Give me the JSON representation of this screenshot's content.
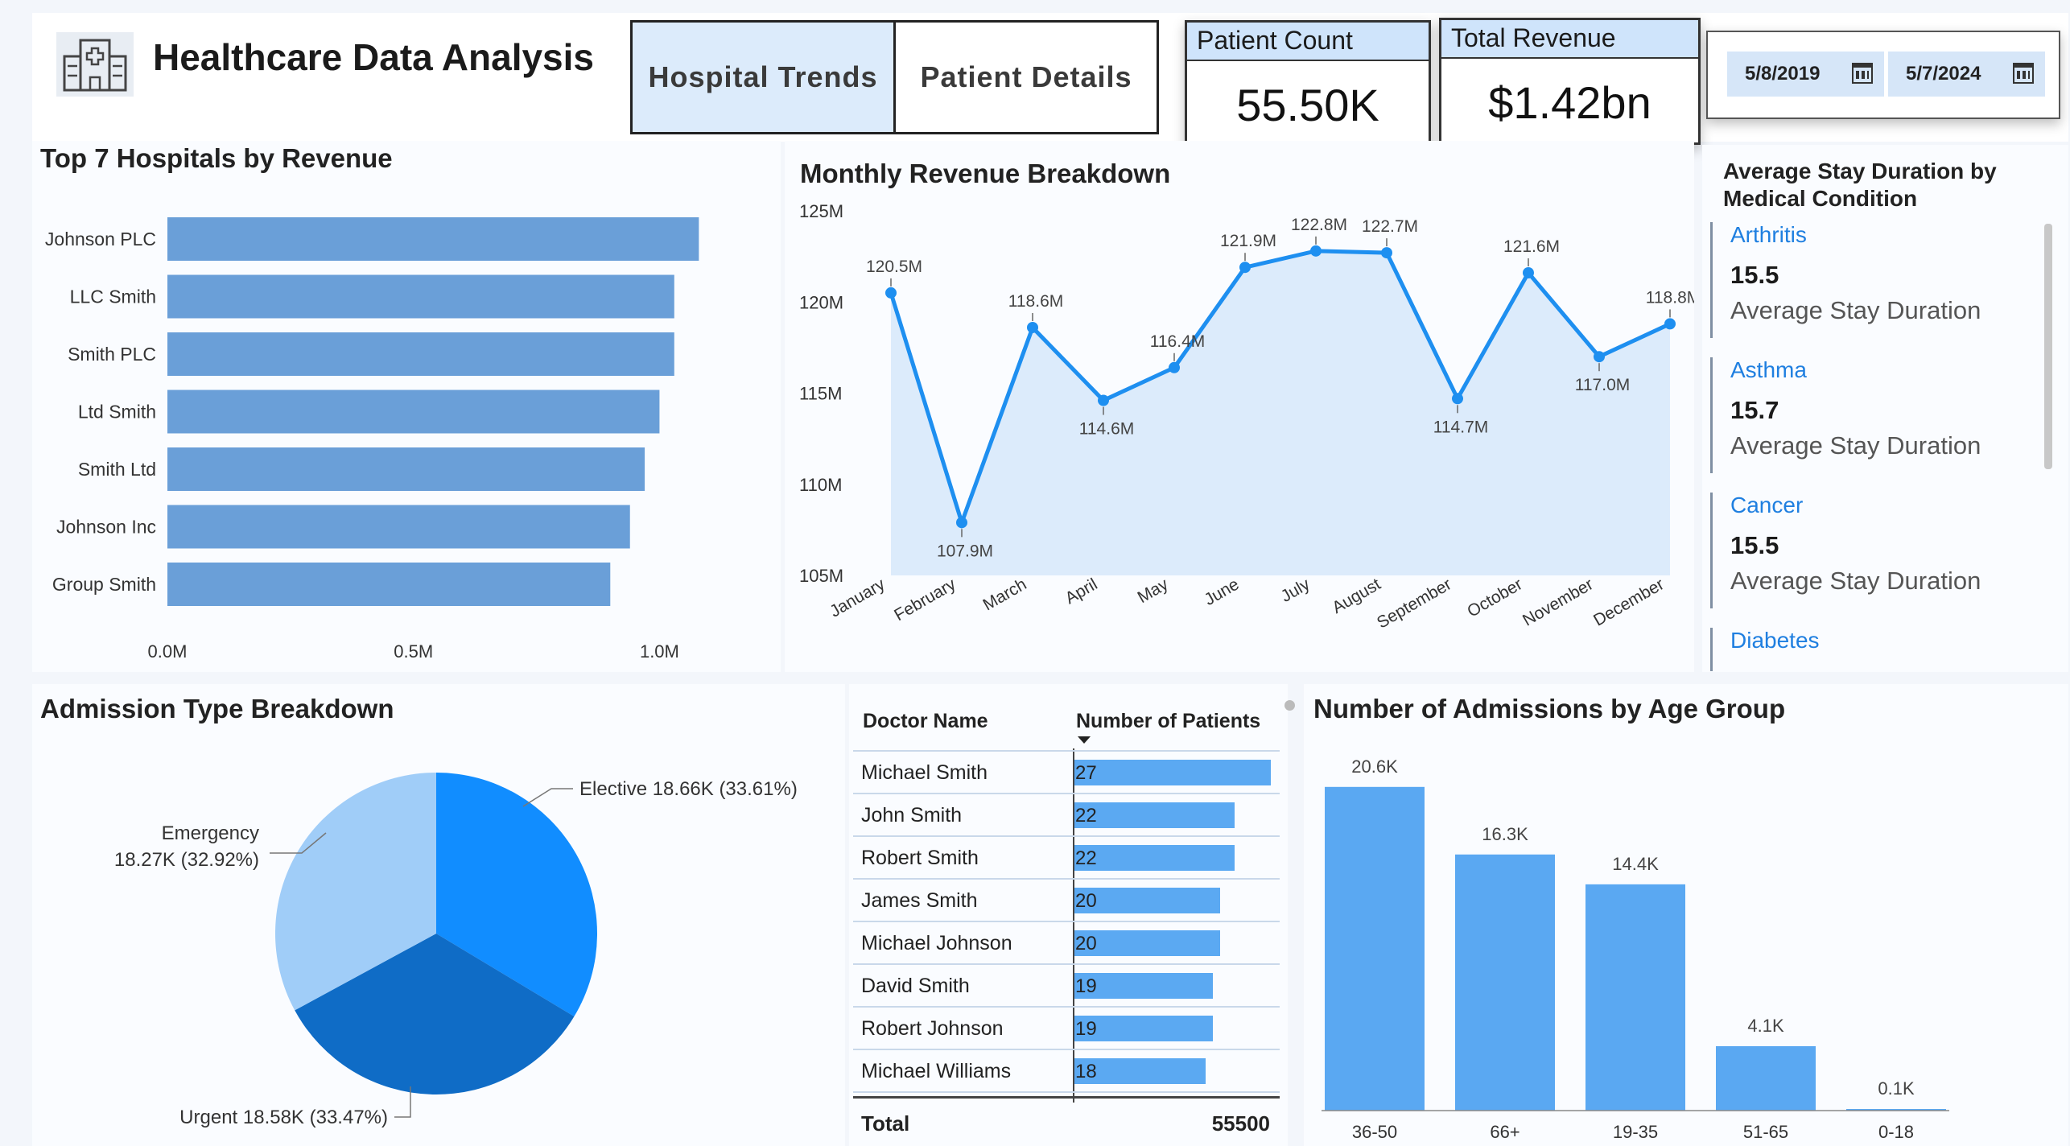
{
  "header": {
    "title": "Healthcare Data Analysis",
    "tabs": [
      {
        "label": "Hospital Trends",
        "active": true
      },
      {
        "label": "Patient Details",
        "active": false
      }
    ],
    "kpis": {
      "patient_count": {
        "label": "Patient Count",
        "value": "55.50K"
      },
      "total_revenue": {
        "label": "Total Revenue",
        "value": "$1.42bn"
      }
    },
    "date_range": {
      "start": "5/8/2019",
      "end": "5/7/2024"
    }
  },
  "hospitals": {
    "title": "Top 7 Hospitals by Revenue",
    "categories": [
      "Johnson PLC",
      "LLC Smith",
      "Smith PLC",
      "Ltd Smith",
      "Smith Ltd",
      "Johnson Inc",
      "Group Smith"
    ],
    "values": [
      1.08,
      1.03,
      1.03,
      1.0,
      0.97,
      0.94,
      0.9
    ],
    "xticks": [
      "0.0M",
      "0.5M",
      "1.0M"
    ],
    "xlim": [
      0,
      1.05
    ],
    "color": "#6a9fd8"
  },
  "monthly": {
    "title": "Monthly Revenue Breakdown",
    "months": [
      "January",
      "February",
      "March",
      "April",
      "May",
      "June",
      "July",
      "August",
      "September",
      "October",
      "November",
      "December"
    ],
    "values": [
      120.5,
      107.9,
      118.6,
      114.6,
      116.4,
      121.9,
      122.8,
      122.7,
      114.7,
      121.6,
      117.0,
      118.8
    ],
    "labels": [
      "120.5M",
      "107.9M",
      "118.6M",
      "114.6M",
      "116.4M",
      "121.9M",
      "122.8M",
      "122.7M",
      "114.7M",
      "121.6M",
      "117.0M",
      "118.8M"
    ],
    "yticks": [
      "125M",
      "120M",
      "115M",
      "110M",
      "105M"
    ],
    "ylim": [
      105,
      125
    ],
    "line_color": "#1e8ff0",
    "area_color": "#dcebfb"
  },
  "conditions": {
    "title": "Average Stay Duration by Medical Condition",
    "items": [
      {
        "name": "Arthritis",
        "value": "15.5",
        "label": "Average Stay Duration"
      },
      {
        "name": "Asthma",
        "value": "15.7",
        "label": "Average Stay Duration"
      },
      {
        "name": "Cancer",
        "value": "15.5",
        "label": "Average Stay Duration"
      },
      {
        "name": "Diabetes",
        "value": "",
        "label": ""
      }
    ]
  },
  "admission": {
    "title": "Admission Type Breakdown",
    "slices": [
      {
        "name": "Elective",
        "value": 18.66,
        "label": "Elective 18.66K (33.61%)",
        "color": "#118dff"
      },
      {
        "name": "Urgent",
        "value": 18.58,
        "label": "Urgent 18.58K (33.47%)",
        "color": "#0f6cc6"
      },
      {
        "name": "Emergency",
        "value": 18.27,
        "label_line1": "Emergency",
        "label_line2": "18.27K (32.92%)",
        "color": "#a0cdf8"
      }
    ]
  },
  "doctors": {
    "col_name": "Doctor Name",
    "col_patients": "Number of Patients",
    "rows": [
      {
        "name": "Michael Smith",
        "patients": 27
      },
      {
        "name": "John Smith",
        "patients": 22
      },
      {
        "name": "Robert Smith",
        "patients": 22
      },
      {
        "name": "James Smith",
        "patients": 20
      },
      {
        "name": "Michael Johnson",
        "patients": 20
      },
      {
        "name": "David Smith",
        "patients": 19
      },
      {
        "name": "Robert Johnson",
        "patients": 19
      },
      {
        "name": "Michael Williams",
        "patients": 18
      }
    ],
    "total_label": "Total",
    "total_value": "55500",
    "bar_color": "#5ba9f2"
  },
  "age": {
    "title": "Number of Admissions by Age Group",
    "categories": [
      "36-50",
      "66+",
      "19-35",
      "51-65",
      "0-18"
    ],
    "values": [
      20.6,
      16.3,
      14.4,
      4.1,
      0.1
    ],
    "labels": [
      "20.6K",
      "16.3K",
      "14.4K",
      "4.1K",
      "0.1K"
    ],
    "ylim": [
      0,
      21
    ],
    "color": "#5aa8f2"
  },
  "chart_data": [
    {
      "type": "bar",
      "title": "Top 7 Hospitals by Revenue",
      "orientation": "horizontal",
      "categories": [
        "Johnson PLC",
        "LLC Smith",
        "Smith PLC",
        "Ltd Smith",
        "Smith Ltd",
        "Johnson Inc",
        "Group Smith"
      ],
      "values": [
        1.08,
        1.03,
        1.03,
        1.0,
        0.97,
        0.94,
        0.9
      ],
      "xlim": [
        0,
        1.05
      ]
    },
    {
      "type": "line",
      "title": "Monthly Revenue Breakdown",
      "x": [
        "January",
        "February",
        "March",
        "April",
        "May",
        "June",
        "July",
        "August",
        "September",
        "October",
        "November",
        "December"
      ],
      "values": [
        120.5,
        107.9,
        118.6,
        114.6,
        116.4,
        121.9,
        122.8,
        122.7,
        114.7,
        121.6,
        117.0,
        118.8
      ],
      "ylim": [
        105,
        125
      ]
    },
    {
      "type": "pie",
      "title": "Admission Type Breakdown",
      "categories": [
        "Elective",
        "Urgent",
        "Emergency"
      ],
      "values": [
        18.66,
        18.58,
        18.27
      ]
    },
    {
      "type": "table",
      "columns": [
        "Doctor Name",
        "Number of Patients"
      ],
      "rows": [
        [
          "Michael Smith",
          27
        ],
        [
          "John Smith",
          22
        ],
        [
          "Robert Smith",
          22
        ],
        [
          "James Smith",
          20
        ],
        [
          "Michael Johnson",
          20
        ],
        [
          "David Smith",
          19
        ],
        [
          "Robert Johnson",
          19
        ],
        [
          "Michael Williams",
          18
        ]
      ],
      "total": 55500
    },
    {
      "type": "bar",
      "title": "Number of Admissions by Age Group",
      "categories": [
        "36-50",
        "66+",
        "19-35",
        "51-65",
        "0-18"
      ],
      "values": [
        20.6,
        16.3,
        14.4,
        4.1,
        0.1
      ]
    }
  ]
}
